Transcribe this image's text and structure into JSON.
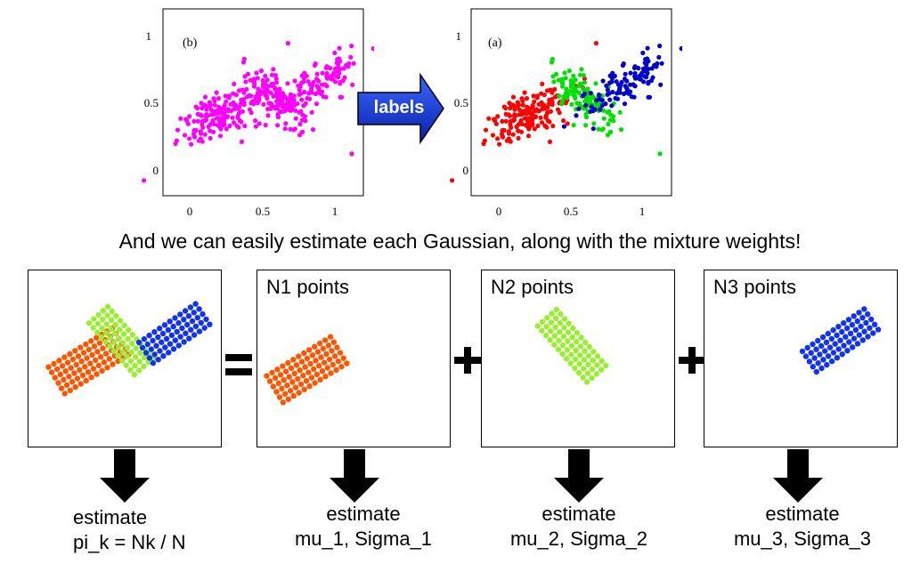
{
  "top_left_plot": {
    "panel_label": "(b)",
    "y_ticks": [
      "1",
      "0.5",
      "0"
    ],
    "x_ticks": [
      "0",
      "0.5",
      "1"
    ],
    "point_color": "#ff00ff"
  },
  "top_right_plot": {
    "panel_label": "(a)",
    "y_ticks": [
      "1",
      "0.5",
      "0"
    ],
    "x_ticks": [
      "0",
      "0.5",
      "1"
    ],
    "cluster_colors": [
      "#ff0000",
      "#00e000",
      "#0000cc"
    ]
  },
  "arrow_label": "labels",
  "headline": "And we can easily estimate each Gaussian, along with the mixture weights!",
  "boxes": [
    {
      "title": ""
    },
    {
      "title": "N1 points"
    },
    {
      "title": "N2 points"
    },
    {
      "title": "N3 points"
    }
  ],
  "operators": [
    "=",
    "+",
    "+"
  ],
  "captions": [
    {
      "line1": "estimate",
      "line2": "pi_k = Nk / N"
    },
    {
      "line1": "estimate",
      "line2": "mu_1, Sigma_1"
    },
    {
      "line1": "estimate",
      "line2": "mu_2, Sigma_2"
    },
    {
      "line1": "estimate",
      "line2": "mu_3, Sigma_3"
    }
  ],
  "colors": {
    "orange": "#ff5500",
    "lime": "#99ee33",
    "blue": "#1133ee"
  }
}
